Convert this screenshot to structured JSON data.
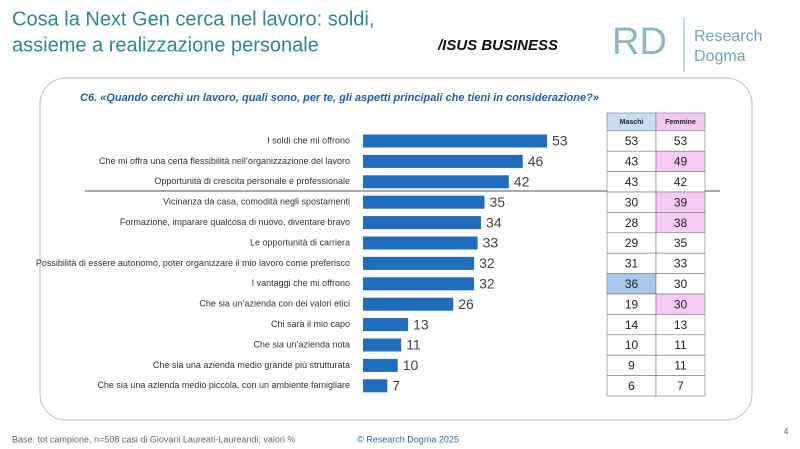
{
  "header": {
    "title_lines": [
      "Cosa la Next Gen cerca nel lavoro: soldi,",
      "assieme a realizzazione personale"
    ],
    "partner_logo": "/ISUS BUSINESS",
    "brand_mark": "RD",
    "brand_lines": [
      "Research",
      "Dogma"
    ]
  },
  "chart_data": {
    "type": "bar",
    "orientation": "horizontal",
    "title": "C6. «Quando cerchi un lavoro, quali sono, per te, gli aspetti principali che tieni in considerazione?»",
    "categories": [
      "I soldi che mi offrono",
      "Che mi offra una certa flessibilità nell’organizzazione del lavoro",
      "Opportunità di crescita personale e professionale",
      "Vicinanza da casa, comodità negli spostamenti",
      "Formazione, imparare qualcosa di nuovo, diventare bravo",
      "Le opportunità di carriera",
      "Possibilità di essere autonomo, poter organizzare il mio lavoro come preferisco",
      "I vantaggi che mi offrono",
      "Che sia un’azienda con dei valori etici",
      "Chi sarà il mio capo",
      "Che sia un’azienda nota",
      "Che sia una azienda medio grande più strutturata",
      "Che sia una azienda medio piccola, con un ambiente famigliare"
    ],
    "values": [
      53,
      46,
      42,
      35,
      34,
      33,
      32,
      32,
      26,
      13,
      11,
      10,
      7
    ],
    "color": "#1f6dbd"
  },
  "table": {
    "columns": [
      "Maschi",
      "Femmine"
    ],
    "header_colors": [
      "#c9ddf5",
      "#f3c8f0"
    ],
    "rows": [
      [
        53,
        53
      ],
      [
        43,
        49
      ],
      [
        43,
        42
      ],
      [
        30,
        39
      ],
      [
        28,
        38
      ],
      [
        29,
        35
      ],
      [
        31,
        33
      ],
      [
        36,
        30
      ],
      [
        19,
        30
      ],
      [
        14,
        13
      ],
      [
        10,
        11
      ],
      [
        9,
        11
      ],
      [
        6,
        7
      ]
    ],
    "cell_colors": [
      [
        null,
        null
      ],
      [
        null,
        "#f6cbf3"
      ],
      [
        null,
        null
      ],
      [
        null,
        "#f6cbf3"
      ],
      [
        null,
        "#f6cbf3"
      ],
      [
        null,
        null
      ],
      [
        null,
        null
      ],
      [
        "#a9c8ec",
        null
      ],
      [
        null,
        "#f6cbf3"
      ],
      [
        null,
        null
      ],
      [
        null,
        null
      ],
      [
        null,
        null
      ],
      [
        null,
        null
      ]
    ]
  },
  "footer": {
    "base": "Base: tot campione, n=508 casi di Giovani Laureati-Laureandi, valori %",
    "copyright": "© Research Dogma 2025",
    "page": "4"
  }
}
